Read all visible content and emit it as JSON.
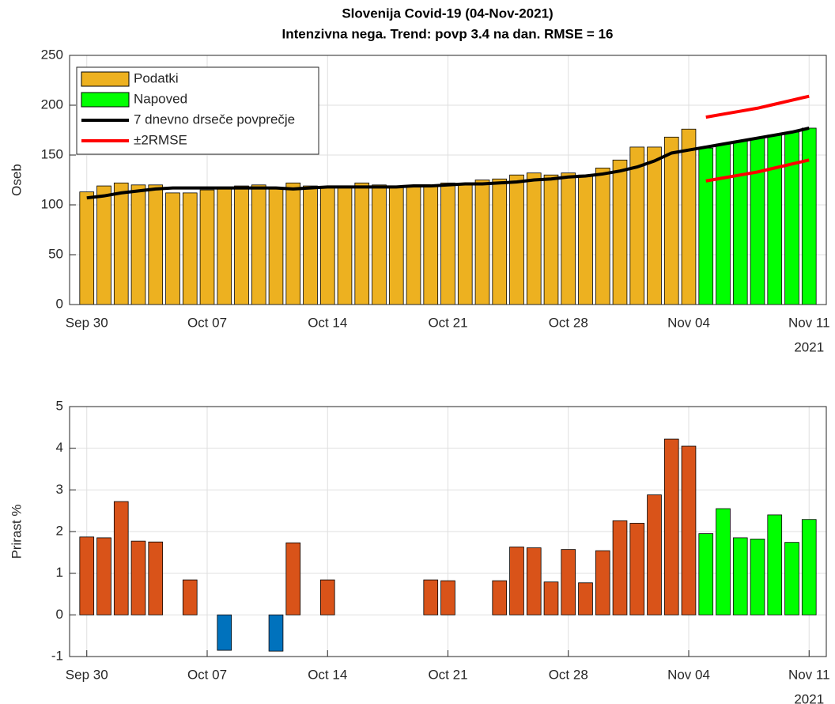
{
  "chart_data": [
    {
      "type": "bar",
      "title": [
        "Slovenija Covid-19 (04-Nov-2021)",
        "Intenzivna nega. Trend: povp 3.4 na dan. RMSE = 16"
      ],
      "ylabel": "Oseb",
      "x_secondary_label": "2021",
      "categories": [
        "Sep 30",
        null,
        null,
        null,
        null,
        null,
        null,
        "Oct 07",
        null,
        null,
        null,
        null,
        null,
        null,
        "Oct 14",
        null,
        null,
        null,
        null,
        null,
        null,
        "Oct 21",
        null,
        null,
        null,
        null,
        null,
        null,
        "Oct 28",
        null,
        null,
        null,
        null,
        null,
        null,
        "Nov 04",
        null,
        null,
        null,
        null,
        null,
        null,
        "Nov 11"
      ],
      "xlim": [
        -1,
        43
      ],
      "ylim": [
        0,
        250
      ],
      "yticks": [
        0,
        50,
        100,
        150,
        200,
        250
      ],
      "grid": true,
      "legend": "northwest",
      "series": [
        {
          "name": "Podatki",
          "type": "bar",
          "color": "#edb120",
          "values": [
            113,
            119,
            122,
            120,
            120,
            112,
            112,
            115,
            117,
            119,
            120,
            116,
            122,
            119,
            118,
            119,
            122,
            120,
            119,
            119,
            120,
            122,
            120,
            125,
            126,
            130,
            132,
            130,
            132,
            130,
            137,
            145,
            158,
            158,
            168,
            176,
            null,
            null,
            null,
            null,
            null,
            null,
            null
          ]
        },
        {
          "name": "Napoved",
          "type": "bar",
          "color": "#00ff00",
          "values": [
            null,
            null,
            null,
            null,
            null,
            null,
            null,
            null,
            null,
            null,
            null,
            null,
            null,
            null,
            null,
            null,
            null,
            null,
            null,
            null,
            null,
            null,
            null,
            null,
            null,
            null,
            null,
            null,
            null,
            null,
            null,
            null,
            null,
            null,
            null,
            null,
            157,
            161,
            164,
            167,
            170,
            173,
            177
          ]
        },
        {
          "name": "7 dnevno drseče povprečje",
          "type": "line",
          "color": "#000000",
          "values": [
            107,
            109,
            112,
            114,
            116,
            117,
            117,
            117,
            117,
            117,
            117,
            117,
            116,
            117,
            118,
            118,
            118,
            118,
            118,
            119,
            119,
            120,
            121,
            121,
            122,
            123,
            125,
            126,
            128,
            129,
            131,
            134,
            138,
            144,
            152,
            155,
            158,
            161,
            164,
            167,
            170,
            173,
            177
          ]
        },
        {
          "name": "±2RMSE",
          "type": "band",
          "color": "#ff0000",
          "upper": [
            null,
            null,
            null,
            null,
            null,
            null,
            null,
            null,
            null,
            null,
            null,
            null,
            null,
            null,
            null,
            null,
            null,
            null,
            null,
            null,
            null,
            null,
            null,
            null,
            null,
            null,
            null,
            null,
            null,
            null,
            null,
            null,
            null,
            null,
            null,
            null,
            188,
            191,
            194,
            197,
            201,
            205,
            209
          ],
          "lower": [
            null,
            null,
            null,
            null,
            null,
            null,
            null,
            null,
            null,
            null,
            null,
            null,
            null,
            null,
            null,
            null,
            null,
            null,
            null,
            null,
            null,
            null,
            null,
            null,
            null,
            null,
            null,
            null,
            null,
            null,
            null,
            null,
            null,
            null,
            null,
            null,
            124,
            127,
            130,
            133,
            137,
            141,
            145
          ]
        }
      ]
    },
    {
      "type": "bar",
      "ylabel": "Prirast %",
      "x_secondary_label": "2021",
      "categories": [
        "Sep 30",
        null,
        null,
        null,
        null,
        null,
        null,
        "Oct 07",
        null,
        null,
        null,
        null,
        null,
        null,
        "Oct 14",
        null,
        null,
        null,
        null,
        null,
        null,
        "Oct 21",
        null,
        null,
        null,
        null,
        null,
        null,
        "Oct 28",
        null,
        null,
        null,
        null,
        null,
        null,
        "Nov 04",
        null,
        null,
        null,
        null,
        null,
        null,
        "Nov 11"
      ],
      "xlim": [
        -1,
        43
      ],
      "ylim": [
        -1,
        5
      ],
      "yticks": [
        -1,
        0,
        1,
        2,
        3,
        4,
        5
      ],
      "grid": true,
      "series": [
        {
          "type": "bar",
          "color": "#d95319",
          "negative_color": "#0072bd",
          "values": [
            1.87,
            1.85,
            2.72,
            1.77,
            1.75,
            0,
            0.84,
            0,
            -0.85,
            0,
            0,
            -0.87,
            1.73,
            0,
            0.84,
            0,
            0,
            0,
            0,
            0,
            0.84,
            0.82,
            0,
            0,
            0.82,
            1.63,
            1.61,
            0.79,
            1.57,
            0.77,
            1.54,
            2.26,
            2.2,
            2.88,
            4.22,
            4.05,
            null,
            null,
            null,
            null,
            null,
            null,
            null
          ]
        },
        {
          "type": "bar",
          "color": "#00ff00",
          "values": [
            null,
            null,
            null,
            null,
            null,
            null,
            null,
            null,
            null,
            null,
            null,
            null,
            null,
            null,
            null,
            null,
            null,
            null,
            null,
            null,
            null,
            null,
            null,
            null,
            null,
            null,
            null,
            null,
            null,
            null,
            null,
            null,
            null,
            null,
            null,
            null,
            1.95,
            2.55,
            1.85,
            1.82,
            2.4,
            1.74,
            2.29
          ]
        }
      ]
    }
  ]
}
